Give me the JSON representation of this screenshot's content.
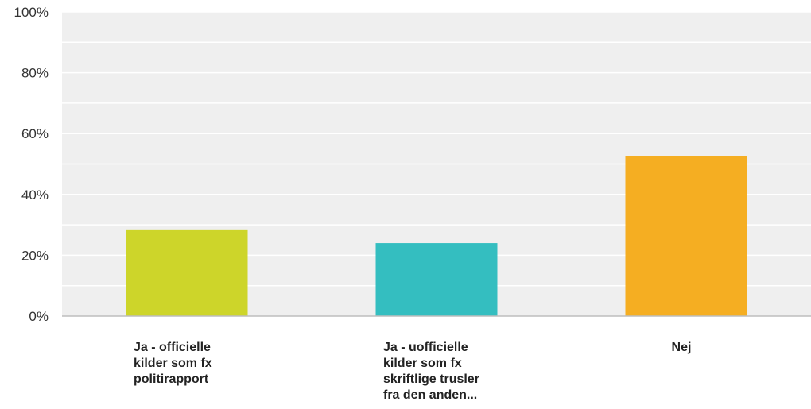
{
  "chart_data": {
    "type": "bar",
    "categories": [
      [
        "Ja - officielle",
        "kilder som fx",
        "politirapport"
      ],
      [
        "Ja - uofficielle",
        "kilder som fx",
        "skriftlige trusler",
        "fra den anden..."
      ],
      [
        "Nej"
      ]
    ],
    "values": [
      28.5,
      24.0,
      52.5
    ],
    "colors": [
      "#cdd52a",
      "#34bec0",
      "#f5ae22"
    ],
    "yticks": [
      "0%",
      "20%",
      "40%",
      "60%",
      "80%",
      "100%"
    ],
    "ylim": [
      0,
      100
    ],
    "grid": true,
    "plot_background": "#efefef",
    "title": "",
    "xlabel": "",
    "ylabel": ""
  }
}
